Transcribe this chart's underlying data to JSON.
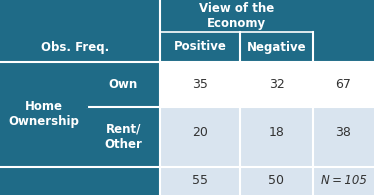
{
  "title_col_header": "View of the\nEconomy",
  "col_subheaders": [
    "Positive",
    "Negative"
  ],
  "obs_freq_label": "Obs. Freq.",
  "row_group_label": "Home\nOwnership",
  "row_labels": [
    "Own",
    "Rent/\nOther"
  ],
  "data": [
    [
      35,
      32,
      67
    ],
    [
      20,
      18,
      38
    ]
  ],
  "totals_row": [
    55,
    50,
    "N = 105"
  ],
  "header_bg": "#1f6b87",
  "row1_bg": "#ffffff",
  "row2_bg": "#d9e4ef",
  "footer_bg": "#d9e4ef",
  "header_text_color": "#ffffff",
  "data_text_color": "#333333",
  "white": "#ffffff"
}
